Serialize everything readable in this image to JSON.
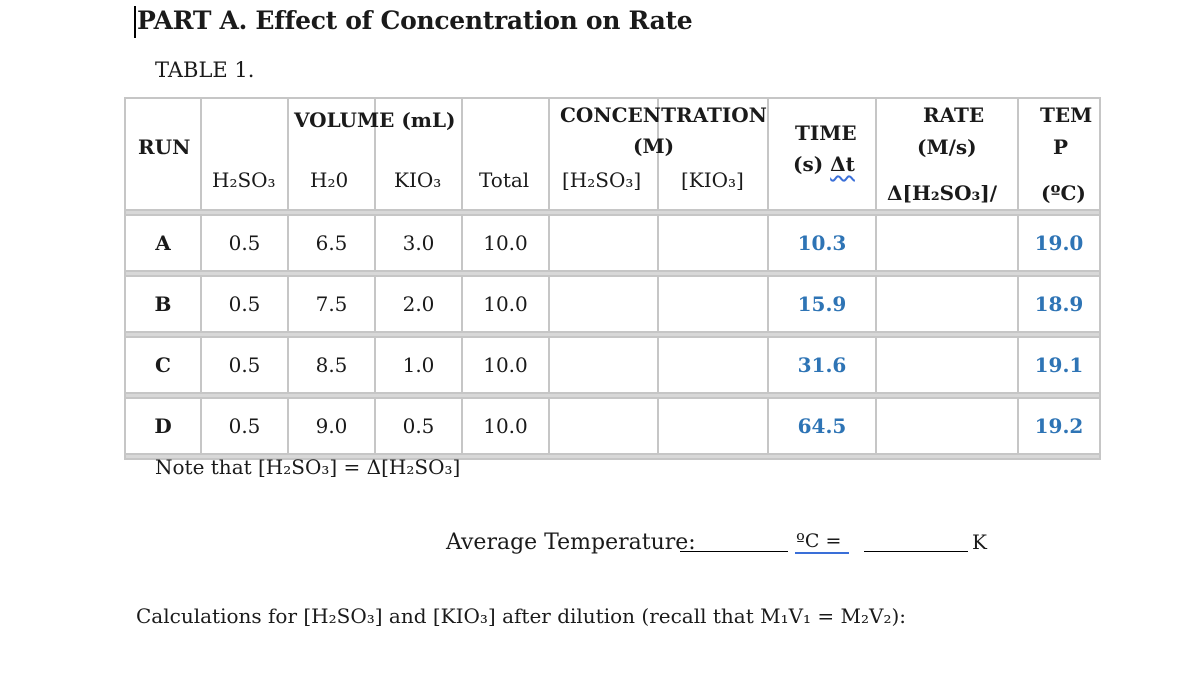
{
  "title": "PART A.  Effect of Concentration on Rate",
  "table_label": "TABLE 1.",
  "header": {
    "run": "RUN",
    "volume_group": "VOLUME (mL)",
    "volume_cols": [
      "H₂SO₃",
      "H₂0",
      "KIO₃",
      "Total"
    ],
    "concentration_group_line1": "CONCENTRATION",
    "concentration_group_line2": "(M)",
    "concentration_cols": [
      "[H₂SO₃]",
      "[KIO₃]"
    ],
    "time_line1": "TIME",
    "time_line2_prefix": "(s) ",
    "time_line2_symbol": "Δt",
    "rate_line1": "RATE",
    "rate_line2": "(M/s)",
    "rate_line3": "Δ[H₂SO₃]/",
    "temp_line1": "TEM",
    "temp_line2": "P",
    "temp_line3": "(ºC)"
  },
  "rows": [
    {
      "run": "A",
      "h2so3": "0.5",
      "h2o": "6.5",
      "kio3": "3.0",
      "total": "10.0",
      "c_h2so3": "",
      "c_kio3": "",
      "time": "10.3",
      "rate": "",
      "temp": "19.0"
    },
    {
      "run": "B",
      "h2so3": "0.5",
      "h2o": "7.5",
      "kio3": "2.0",
      "total": "10.0",
      "c_h2so3": "",
      "c_kio3": "",
      "time": "15.9",
      "rate": "",
      "temp": "18.9"
    },
    {
      "run": "C",
      "h2so3": "0.5",
      "h2o": "8.5",
      "kio3": "1.0",
      "total": "10.0",
      "c_h2so3": "",
      "c_kio3": "",
      "time": "31.6",
      "rate": "",
      "temp": "19.1"
    },
    {
      "run": "D",
      "h2so3": "0.5",
      "h2o": "9.0",
      "kio3": "0.5",
      "total": "10.0",
      "c_h2so3": "",
      "c_kio3": "",
      "time": "64.5",
      "rate": "",
      "temp": "19.2"
    }
  ],
  "note": "Note that [H₂SO₃] = Δ[H₂SO₃]",
  "average_label": "Average Temperature:",
  "celsius_unit": "ºC  =",
  "kelvin_unit": "K",
  "calculations": "Calculations for [H₂SO₃] and [KIO₃] after dilution (recall that M₁V₁ = M₂V₂):",
  "colors": {
    "value_blue": "#2e74b5",
    "separator_gray": "#d8d8d8",
    "border_gray": "#c6c6c6"
  }
}
